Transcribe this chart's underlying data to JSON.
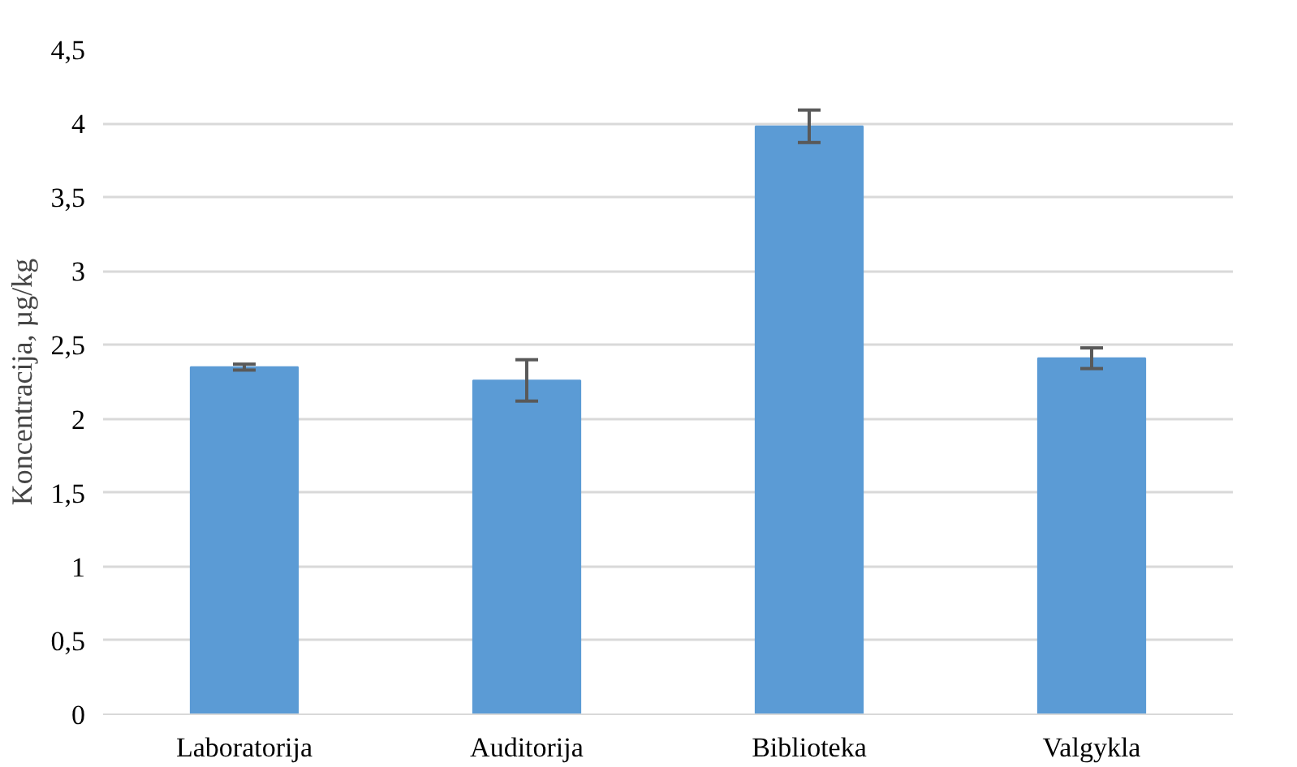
{
  "chart_data": {
    "type": "bar",
    "ylabel": "Koncentracija, µg/kg",
    "categories": [
      "Laboratorija",
      "Auditorija",
      "Biblioteka",
      "Valgykla"
    ],
    "values": [
      2.35,
      2.26,
      3.98,
      2.41
    ],
    "errors": [
      0.02,
      0.14,
      0.11,
      0.07
    ],
    "color": "#5b9bd5",
    "ylim": [
      0,
      4.5
    ],
    "yticks": [
      0,
      {
        "value": 0.5,
        "label": "0,5"
      },
      1,
      {
        "value": 1.5,
        "label": "1,5"
      },
      2,
      {
        "value": 2.5,
        "label": "2,5"
      },
      3,
      {
        "value": 3.5,
        "label": "3,5"
      },
      4,
      {
        "value": 4.5,
        "label": "4,5"
      }
    ],
    "grid": "y"
  }
}
